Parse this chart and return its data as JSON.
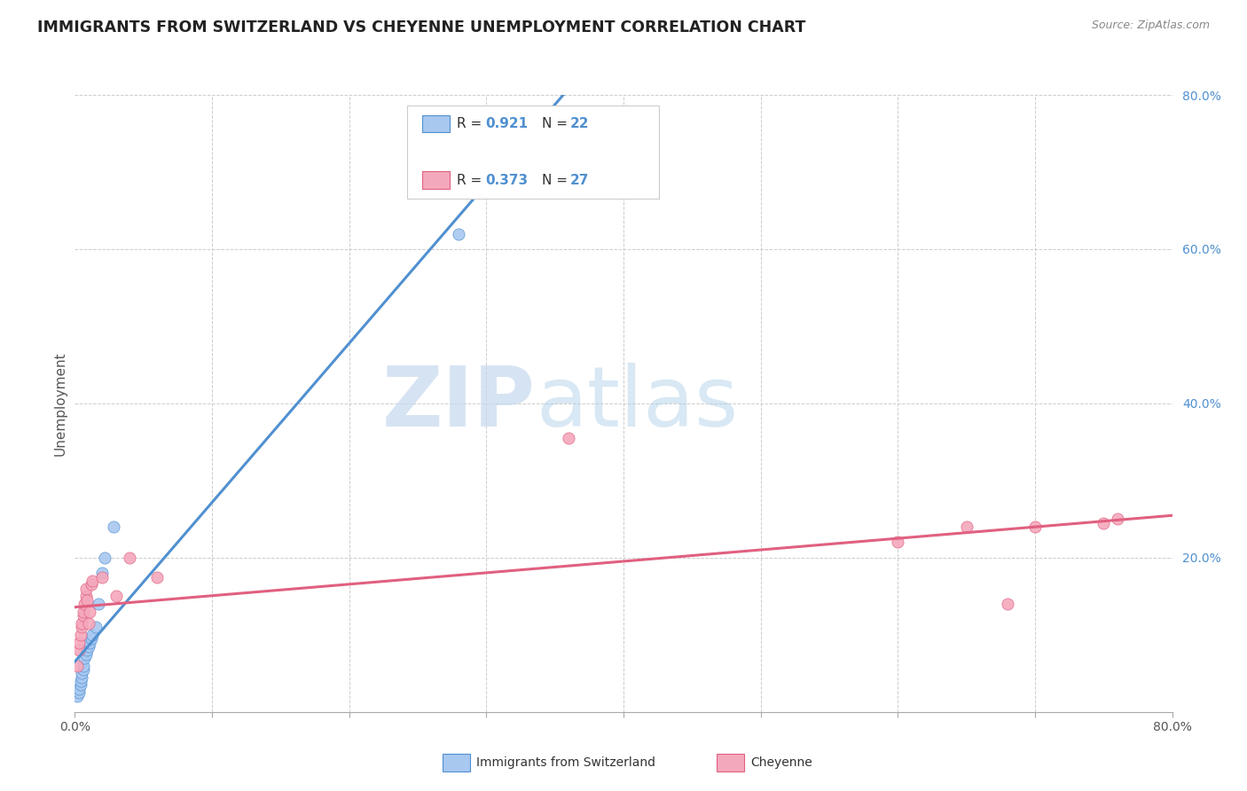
{
  "title": "IMMIGRANTS FROM SWITZERLAND VS CHEYENNE UNEMPLOYMENT CORRELATION CHART",
  "source": "Source: ZipAtlas.com",
  "ylabel": "Unemployment",
  "xlim": [
    0.0,
    0.8
  ],
  "ylim": [
    0.0,
    0.8
  ],
  "ytick_positions": [
    0.2,
    0.4,
    0.6,
    0.8
  ],
  "ytick_labels": [
    "20.0%",
    "40.0%",
    "60.0%",
    "80.0%"
  ],
  "legend_r1": "0.921",
  "legend_n1": "22",
  "legend_r2": "0.373",
  "legend_n2": "27",
  "color_blue": "#A8C8F0",
  "color_pink": "#F4A8BC",
  "line_blue": "#5090D0",
  "line_pink": "#E06080",
  "background": "#FFFFFF",
  "grid_color": "#CCCCCC",
  "blue_points_x": [
    0.002,
    0.003,
    0.003,
    0.004,
    0.004,
    0.005,
    0.005,
    0.006,
    0.006,
    0.007,
    0.008,
    0.009,
    0.01,
    0.011,
    0.012,
    0.013,
    0.015,
    0.017,
    0.02,
    0.022,
    0.028,
    0.28
  ],
  "blue_points_y": [
    0.02,
    0.025,
    0.03,
    0.035,
    0.04,
    0.045,
    0.05,
    0.055,
    0.06,
    0.07,
    0.075,
    0.08,
    0.085,
    0.09,
    0.095,
    0.1,
    0.11,
    0.14,
    0.18,
    0.2,
    0.24,
    0.62
  ],
  "pink_points_x": [
    0.002,
    0.003,
    0.003,
    0.004,
    0.005,
    0.005,
    0.006,
    0.006,
    0.007,
    0.008,
    0.008,
    0.009,
    0.01,
    0.011,
    0.012,
    0.013,
    0.02,
    0.03,
    0.04,
    0.06,
    0.36,
    0.6,
    0.65,
    0.7,
    0.68,
    0.75,
    0.76
  ],
  "pink_points_y": [
    0.06,
    0.08,
    0.09,
    0.1,
    0.11,
    0.115,
    0.125,
    0.13,
    0.14,
    0.15,
    0.16,
    0.145,
    0.115,
    0.13,
    0.165,
    0.17,
    0.175,
    0.15,
    0.2,
    0.175,
    0.355,
    0.22,
    0.24,
    0.24,
    0.14,
    0.245,
    0.25
  ],
  "watermark_zip": "ZIP",
  "watermark_atlas": "atlas"
}
